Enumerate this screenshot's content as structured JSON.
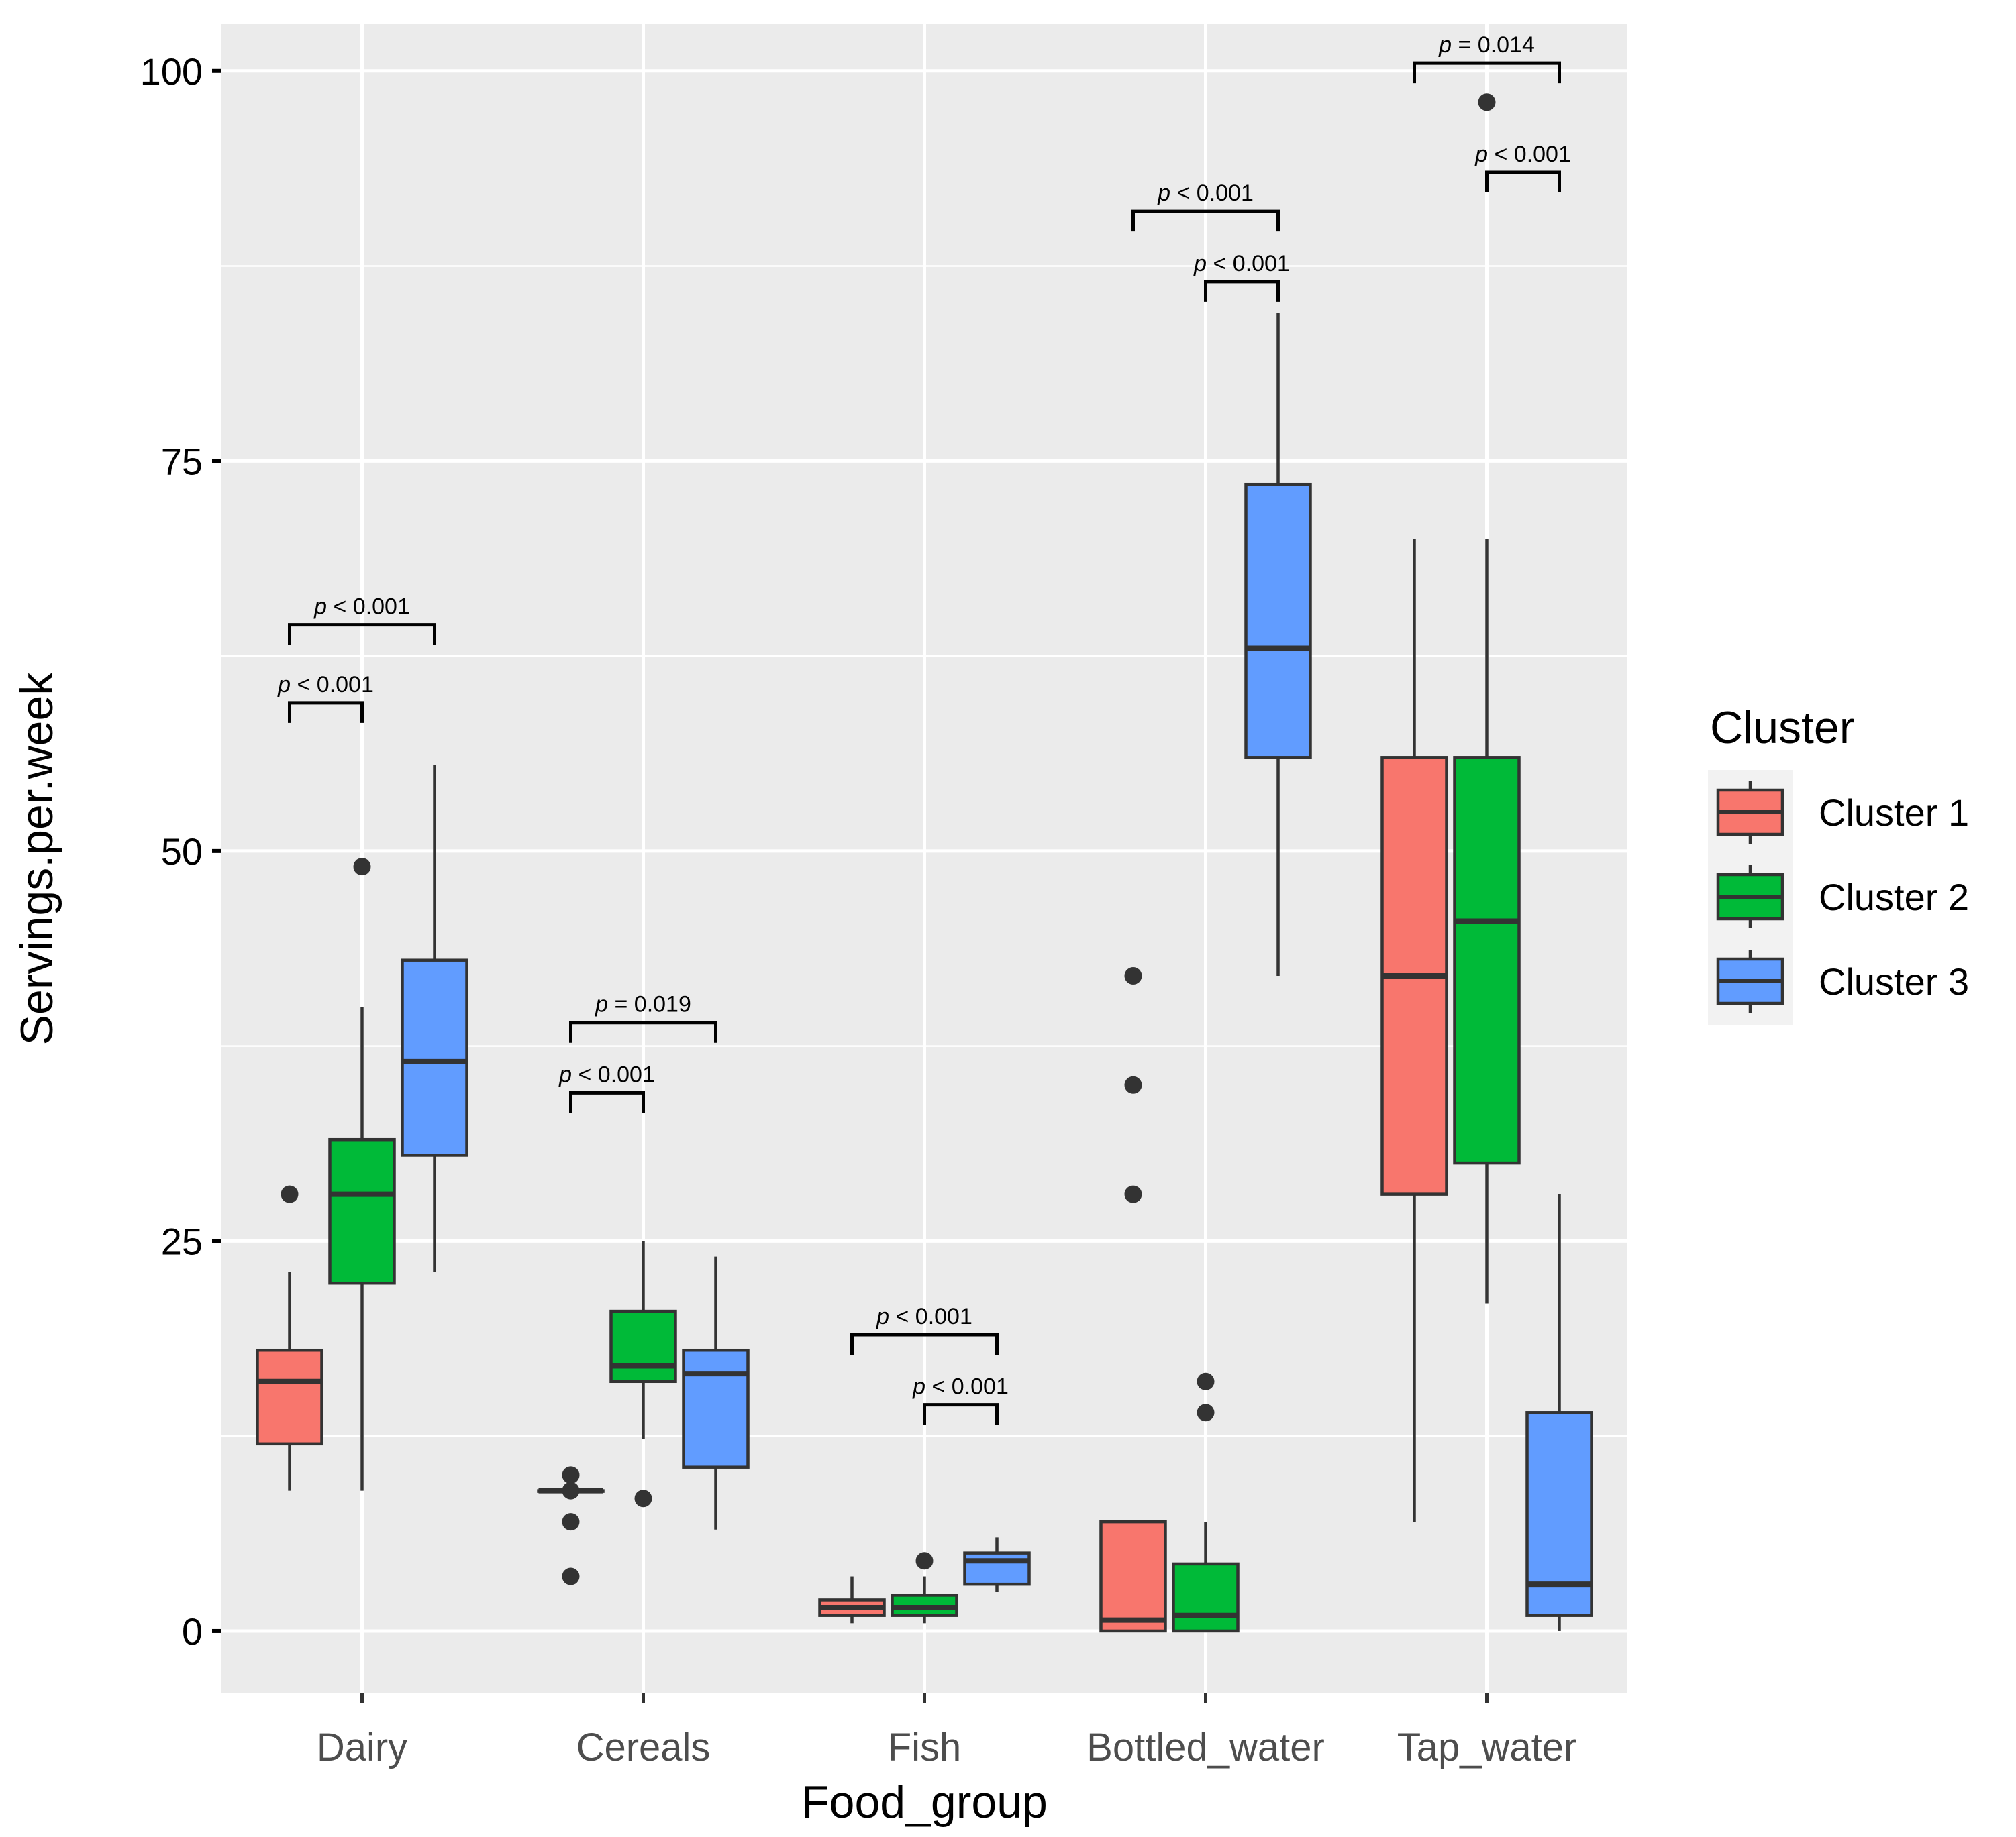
{
  "chart_data": {
    "type": "boxplot",
    "title": "",
    "xlabel": "Food_group",
    "ylabel": "Servings.per.week",
    "ylim": [
      -4,
      103
    ],
    "yticks": [
      0,
      25,
      50,
      75,
      100
    ],
    "ytick_labels": [
      "0",
      "25",
      "50",
      "75",
      "100"
    ],
    "categories": [
      "Dairy",
      "Cereals",
      "Fish",
      "Bottled_water",
      "Tap_water"
    ],
    "legend": {
      "title": "Cluster",
      "position": "right"
    },
    "series": [
      {
        "name": "Cluster 1",
        "color": "#F8766D",
        "boxes": [
          {
            "min": 9,
            "q1": 12,
            "median": 16,
            "q3": 18,
            "max": 23,
            "outliers": [
              28
            ]
          },
          {
            "min": 9,
            "q1": 9,
            "median": 9,
            "q3": 9,
            "max": 9,
            "outliers": [
              10,
              9,
              7,
              3.5
            ]
          },
          {
            "min": 0.5,
            "q1": 1,
            "median": 1.5,
            "q3": 2,
            "max": 3.5,
            "outliers": []
          },
          {
            "min": 0,
            "q1": 0,
            "median": 0.7,
            "q3": 7,
            "max": 7,
            "outliers": [
              42,
              35,
              28
            ]
          },
          {
            "min": 7,
            "q1": 28,
            "median": 42,
            "q3": 56,
            "max": 70,
            "outliers": []
          }
        ]
      },
      {
        "name": "Cluster 2",
        "color": "#00BA38",
        "boxes": [
          {
            "min": 9,
            "q1": 22.3,
            "median": 28,
            "q3": 31.5,
            "max": 40,
            "outliers": [
              49
            ]
          },
          {
            "min": 12.3,
            "q1": 16,
            "median": 17,
            "q3": 20.5,
            "max": 25,
            "outliers": [
              8.5
            ]
          },
          {
            "min": 0.5,
            "q1": 1,
            "median": 1.5,
            "q3": 2.3,
            "max": 3.5,
            "outliers": [
              4.5
            ]
          },
          {
            "min": 0,
            "q1": 0,
            "median": 1,
            "q3": 4.3,
            "max": 7,
            "outliers": [
              16,
              14
            ]
          },
          {
            "min": 21,
            "q1": 30,
            "median": 45.5,
            "q3": 56,
            "max": 70,
            "outliers": [
              98
            ]
          }
        ]
      },
      {
        "name": "Cluster 3",
        "color": "#619CFF",
        "boxes": [
          {
            "min": 23,
            "q1": 30.5,
            "median": 36.5,
            "q3": 43,
            "max": 55.5,
            "outliers": []
          },
          {
            "min": 6.5,
            "q1": 10.5,
            "median": 16.5,
            "q3": 18,
            "max": 24,
            "outliers": []
          },
          {
            "min": 2.5,
            "q1": 3,
            "median": 4.5,
            "q3": 5,
            "max": 6,
            "outliers": []
          },
          {
            "min": 42,
            "q1": 56,
            "median": 63,
            "q3": 73.5,
            "max": 84.5,
            "outliers": []
          },
          {
            "min": 0,
            "q1": 1,
            "median": 3,
            "q3": 14,
            "max": 28,
            "outliers": []
          }
        ]
      }
    ],
    "annotations": [
      {
        "group": "Dairy",
        "from": 1,
        "to": 3,
        "y": 64.5,
        "p": "0.001",
        "op": "<"
      },
      {
        "group": "Dairy",
        "from": 1,
        "to": 2,
        "y": 59.5,
        "p": "0.001",
        "op": "<"
      },
      {
        "group": "Cereals",
        "from": 1,
        "to": 3,
        "y": 39,
        "p": "0.019",
        "op": "="
      },
      {
        "group": "Cereals",
        "from": 1,
        "to": 2,
        "y": 34.5,
        "p": "0.001",
        "op": "<"
      },
      {
        "group": "Fish",
        "from": 1,
        "to": 3,
        "y": 19,
        "p": "0.001",
        "op": "<"
      },
      {
        "group": "Fish",
        "from": 2,
        "to": 3,
        "y": 14.5,
        "p": "0.001",
        "op": "<"
      },
      {
        "group": "Bottled_water",
        "from": 1,
        "to": 3,
        "y": 91,
        "p": "0.001",
        "op": "<"
      },
      {
        "group": "Bottled_water",
        "from": 2,
        "to": 3,
        "y": 86.5,
        "p": "0.001",
        "op": "<"
      },
      {
        "group": "Tap_water",
        "from": 1,
        "to": 3,
        "y": 100.5,
        "p": "0.014",
        "op": "="
      },
      {
        "group": "Tap_water",
        "from": 2,
        "to": 3,
        "y": 93.5,
        "p": "0.001",
        "op": "<"
      }
    ]
  }
}
